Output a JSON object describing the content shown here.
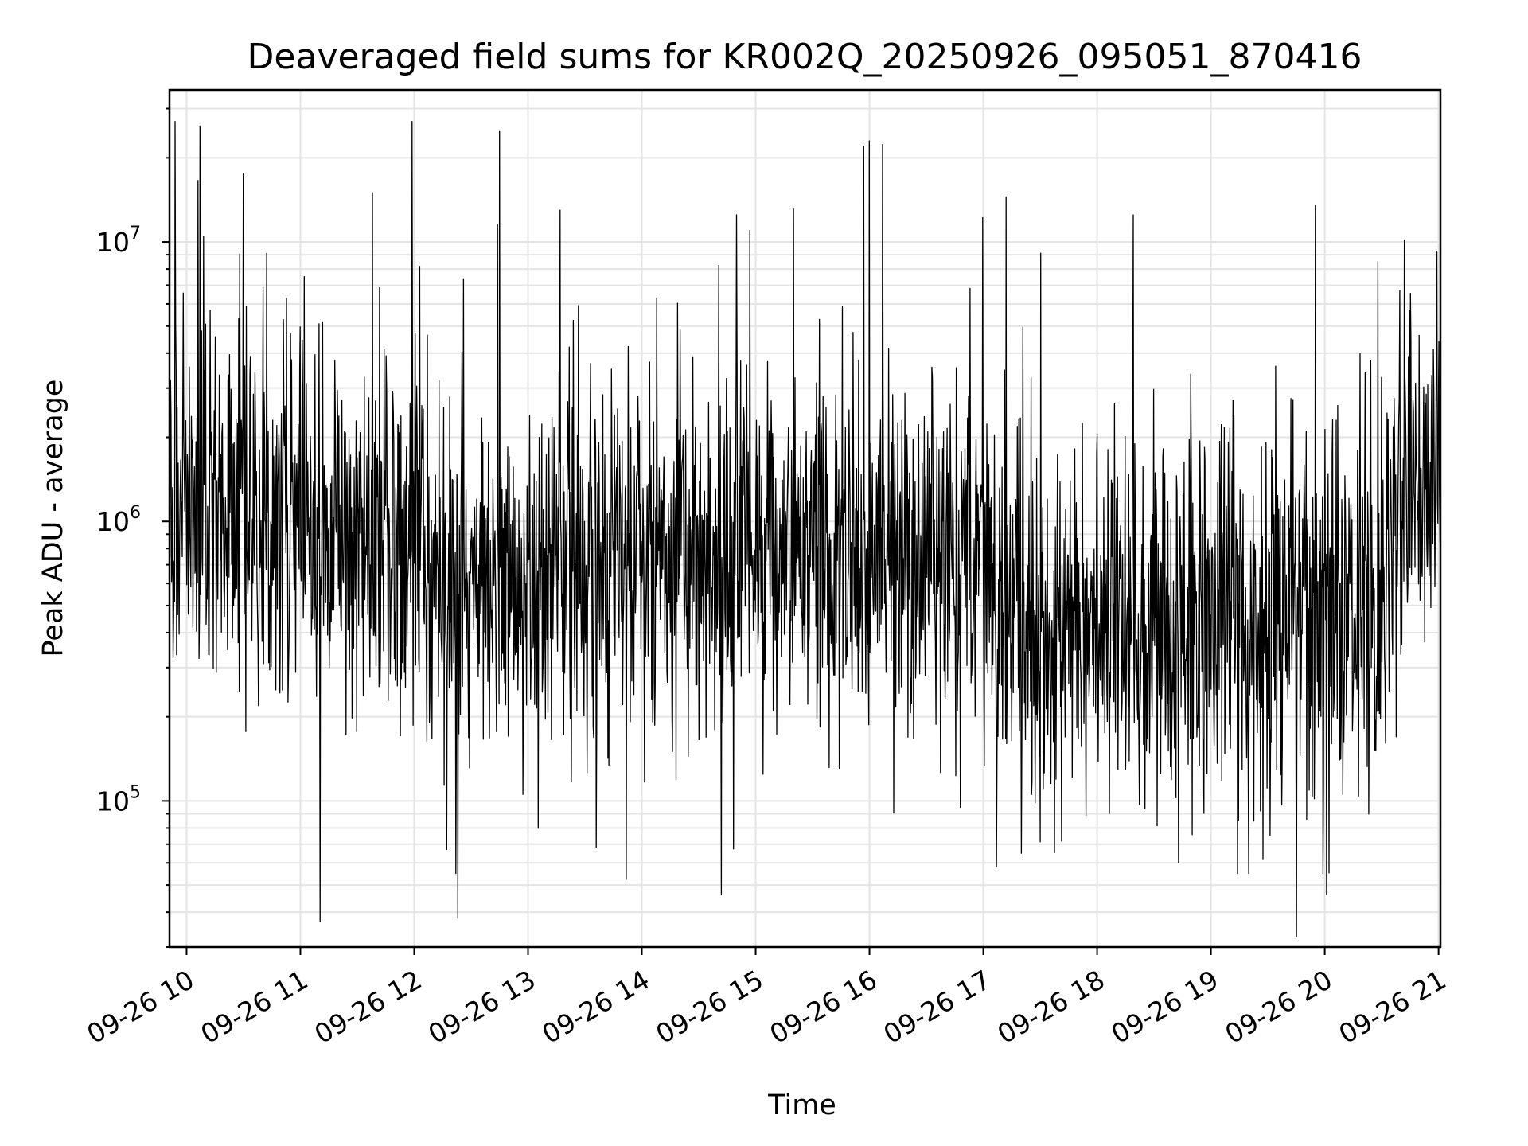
{
  "chart_data": {
    "type": "line",
    "title": "Deaveraged field sums for KR002Q_20250926_095051_870416",
    "xlabel": "Time",
    "ylabel": "Peak ADU - average",
    "x_scale": "time",
    "y_scale": "log",
    "xlim": [
      "2025-09-26 09:51",
      "2025-09-26 21:01"
    ],
    "ylim": [
      30000,
      35000000
    ],
    "x_ticks": [
      "09-26 10",
      "09-26 11",
      "09-26 12",
      "09-26 13",
      "09-26 14",
      "09-26 15",
      "09-26 16",
      "09-26 17",
      "09-26 18",
      "09-26 19",
      "09-26 20",
      "09-26 21"
    ],
    "y_ticks": [
      {
        "base": "10",
        "exp": "5",
        "value": 100000
      },
      {
        "base": "10",
        "exp": "6",
        "value": 1000000
      },
      {
        "base": "10",
        "exp": "7",
        "value": 10000000
      }
    ],
    "grid": true,
    "legend": "none",
    "series_color": "#000000",
    "series": [
      {
        "x_start": "2025-09-26 09:51",
        "x_end": "2025-09-26 21:01",
        "n_points": 2500,
        "sample_interval_s": 16,
        "envelope_hours": [
          9.85,
          10.3,
          11.0,
          12.0,
          12.3,
          13.0,
          14.0,
          15.0,
          16.0,
          17.0,
          17.2,
          18.0,
          19.0,
          20.0,
          20.5,
          20.7,
          21.0
        ],
        "envelope_median": [
          1300000,
          1100000,
          900000,
          800000,
          600000,
          620000,
          700000,
          800000,
          700000,
          750000,
          450000,
          400000,
          420000,
          400000,
          450000,
          1300000,
          1300000
        ],
        "spikes": [
          {
            "t": "09:54",
            "v": 27000000
          },
          {
            "t": "10:07",
            "v": 26000000
          },
          {
            "t": "10:09",
            "v": 10500000
          },
          {
            "t": "10:30",
            "v": 17500000
          },
          {
            "t": "11:38",
            "v": 15000000
          },
          {
            "t": "11:59",
            "v": 27000000
          },
          {
            "t": "12:45",
            "v": 25000000
          },
          {
            "t": "12:44",
            "v": 11500000
          },
          {
            "t": "13:17",
            "v": 13000000
          },
          {
            "t": "14:50",
            "v": 12500000
          },
          {
            "t": "14:57",
            "v": 11000000
          },
          {
            "t": "15:57",
            "v": 22000000
          },
          {
            "t": "16:00",
            "v": 23000000
          },
          {
            "t": "17:12",
            "v": 14500000
          },
          {
            "t": "18:19",
            "v": 12500000
          },
          {
            "t": "19:55",
            "v": 13500000
          },
          {
            "t": "20:28",
            "v": 8500000
          },
          {
            "t": "20:59",
            "v": 9200000
          }
        ],
        "dips": [
          {
            "t": "12:23",
            "v": 38000.0
          },
          {
            "t": "12:22",
            "v": 55000
          },
          {
            "t": "12:17",
            "v": 67000
          },
          {
            "t": "17:07",
            "v": 58000
          },
          {
            "t": "18:43",
            "v": 60000
          },
          {
            "t": "19:14",
            "v": 55000
          },
          {
            "t": "19:20",
            "v": 55000
          },
          {
            "t": "19:59",
            "v": 55000
          },
          {
            "t": "17:20",
            "v": 65000
          }
        ]
      }
    ]
  }
}
